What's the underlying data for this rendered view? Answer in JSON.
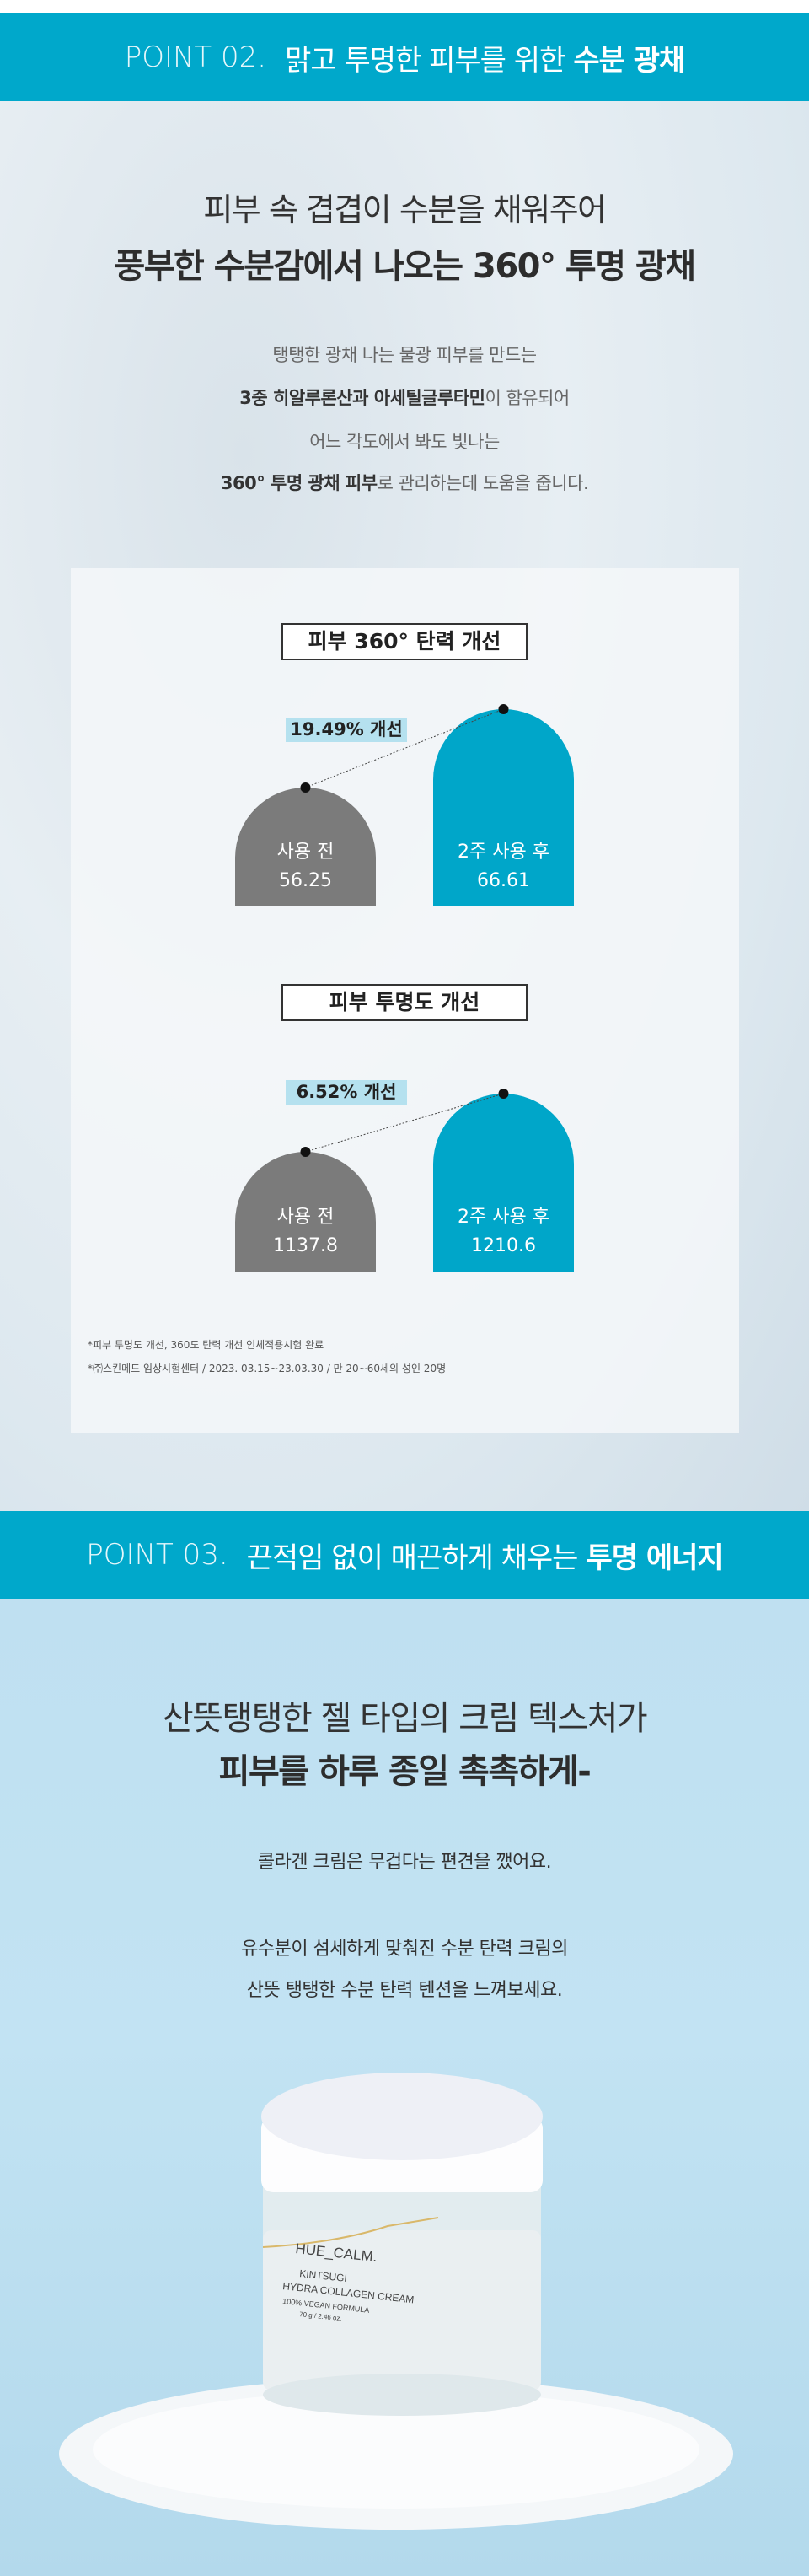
{
  "point02": {
    "banner": {
      "label": "POINT 02.",
      "text": "맑고 투명한 피부를 위한",
      "bold": "수분 광채"
    },
    "heading_line1": "피부 속 겹겹이 수분을 채워주어",
    "heading_line2": "풍부한 수분감에서 나오는 360° 투명 광채",
    "para": [
      {
        "bold": "",
        "text": "탱탱한 광채 나는 물광 피부를 만드는"
      },
      {
        "bold": "3중 히알루론산과 아세틸글루타민",
        "text": "이 함유되어"
      },
      {
        "bold": "",
        "text": "어느 각도에서 봐도 빛나는"
      },
      {
        "bold": "360° 투명 광채 피부",
        "text": "로 관리하는데 도움을 줍니다."
      }
    ],
    "footnotes": [
      "*피부 투명도 개선, 360도 탄력 개선 인체적용시험 완료",
      "*㈜스킨메드 임상시험센터 / 2023. 03.15~23.03.30 / 만 20~60세의 성인 20명"
    ]
  },
  "chart_data": [
    {
      "type": "bar",
      "title": "피부 360°  탄력 개선",
      "annotation": "19.49% 개선",
      "categories": [
        "사용 전",
        "2주 사용 후"
      ],
      "values": [
        56.25,
        66.61
      ],
      "value_labels": [
        "56.25",
        "66.61"
      ],
      "colors": [
        "#7b7b7b",
        "#00a6c9"
      ]
    },
    {
      "type": "bar",
      "title": "피부 투명도 개선",
      "annotation": "6.52% 개선",
      "categories": [
        "사용 전",
        "2주 사용 후"
      ],
      "values": [
        1137.8,
        1210.6
      ],
      "value_labels": [
        "1137.8",
        "1210.6"
      ],
      "colors": [
        "#7b7b7b",
        "#00a6c9"
      ]
    }
  ],
  "point03": {
    "banner": {
      "label": "POINT 03.",
      "text": "끈적임 없이 매끈하게 채우는",
      "bold": "투명 에너지"
    },
    "heading_line1": "산뜻탱탱한 젤 타입의 크림 텍스처가",
    "heading_line2": "피부를 하루 종일 촉촉하게-",
    "para1": "콜라겐 크림은 무겁다는 편견을 깼어요.",
    "para2": [
      "유수분이 섬세하게 맞춰진 수분 탄력 크림의",
      "산뜻 탱탱한 수분 탄력 텐션을 느껴보세요."
    ],
    "product": {
      "brand": "HUE_CALM.",
      "name1": "KINTSUGI",
      "name2": "HYDRA COLLAGEN CREAM",
      "claim": "100% VEGAN FORMULA",
      "weight": "70 g / 2.46 oz."
    }
  },
  "colors": {
    "accent": "#00a8cb",
    "before": "#7b7b7b",
    "after": "#00a6c9",
    "highlight": "#b5e1ef"
  }
}
